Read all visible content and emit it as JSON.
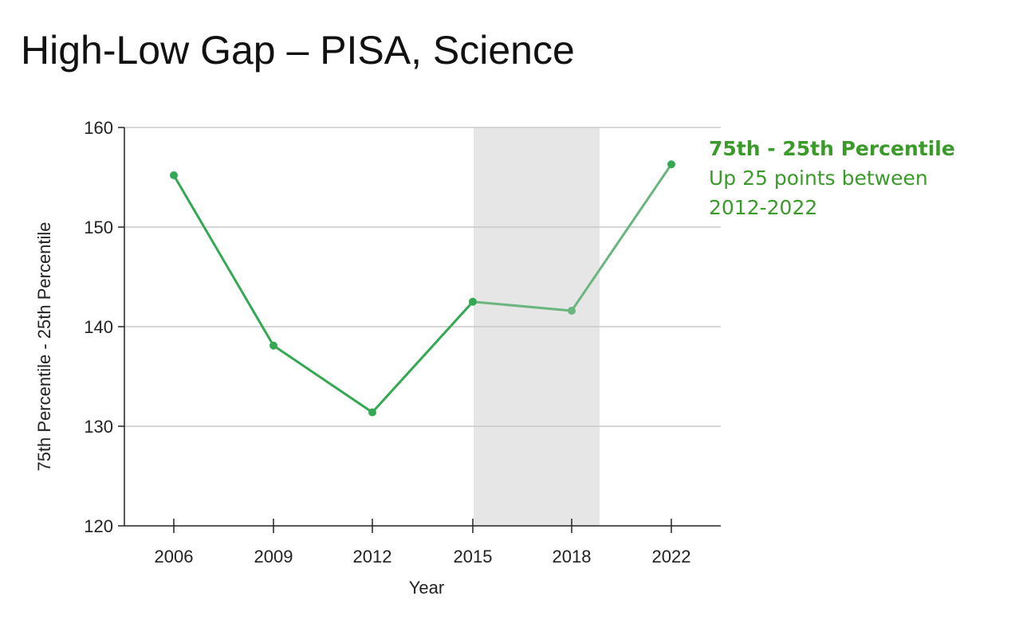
{
  "title": "High-Low Gap – PISA, Science",
  "chart_data": {
    "type": "line",
    "categories": [
      "2006",
      "2009",
      "2012",
      "2015",
      "2018",
      "2022"
    ],
    "series": [
      {
        "values": [
          155.2,
          138.1,
          131.4,
          142.5,
          141.6,
          156.3
        ],
        "color": "#34a853"
      }
    ],
    "xlabel": "Year",
    "ylabel": "75th Percentile - 25th Percentile",
    "ylim": [
      120,
      160
    ],
    "yticks": [
      120,
      130,
      140,
      150,
      160
    ],
    "grid": true,
    "shaded_region": {
      "from": "2015",
      "to": "2018",
      "color": "#e6e6e6"
    },
    "annotation": {
      "heading": "75th - 25th Percentile",
      "line1": "Up 25 points between",
      "line2": "2012-2022",
      "color": "#3a9a2a"
    }
  }
}
